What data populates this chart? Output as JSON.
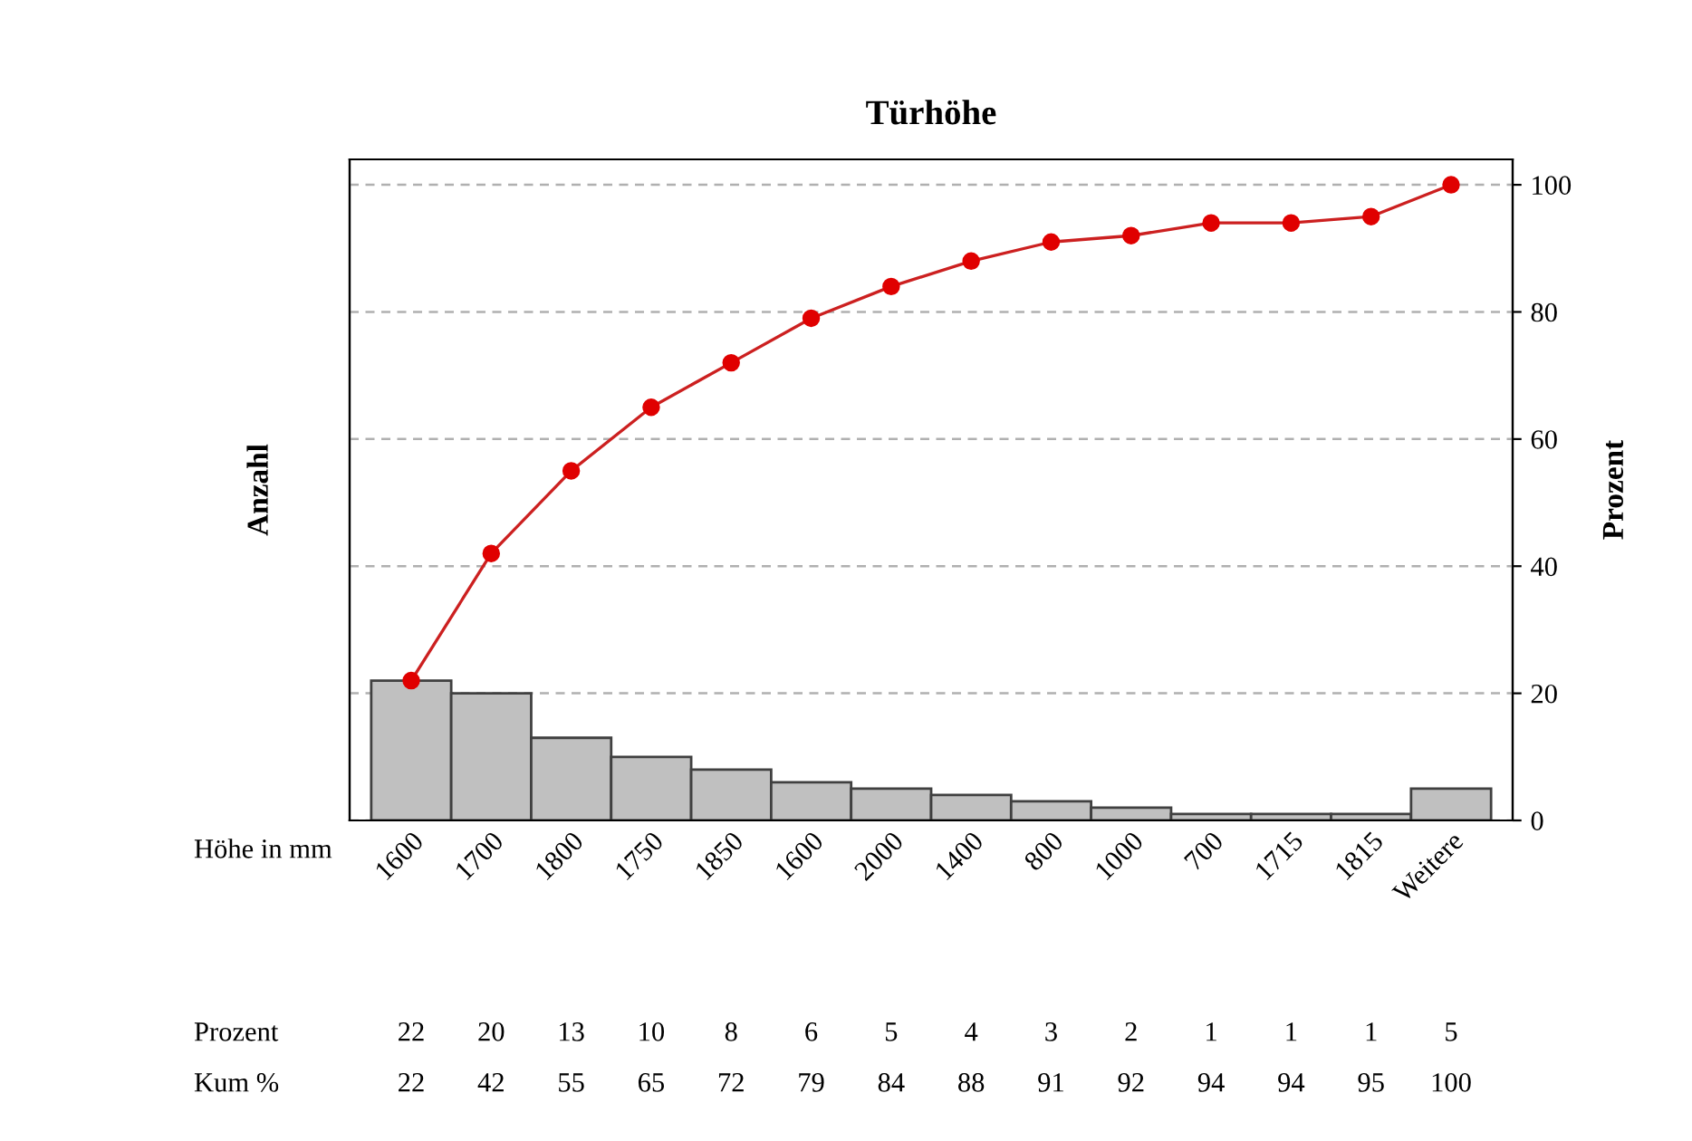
{
  "chart_data": {
    "type": "bar",
    "title": "Türhöhe",
    "ylabel": "Anzahl",
    "y2label": "Prozent",
    "xlabel": "Höhe in mm",
    "categories": [
      "1600",
      "1700",
      "1800",
      "1750",
      "1850",
      "1600",
      "2000",
      "1400",
      "800",
      "1000",
      "700",
      "1715",
      "1815",
      "Weitere"
    ],
    "series": [
      {
        "axis": "y2",
        "color": "#c0c0c0",
        "values": [
          22,
          20,
          13,
          10,
          8,
          6,
          5,
          4,
          3,
          2,
          1,
          1,
          1,
          5
        ]
      },
      {
        "type": "line",
        "axis": "y2",
        "color": "#cc2020",
        "marker": "circle",
        "values": [
          22,
          42,
          55,
          65,
          72,
          79,
          84,
          88,
          91,
          92,
          94,
          94,
          95,
          100
        ]
      }
    ],
    "y2lim": [
      0,
      104
    ],
    "y2ticks": [
      0,
      20,
      40,
      60,
      80,
      100
    ],
    "grid": "y",
    "data_labels": true,
    "annotations": [
      "Prozent",
      "Kum %"
    ]
  }
}
